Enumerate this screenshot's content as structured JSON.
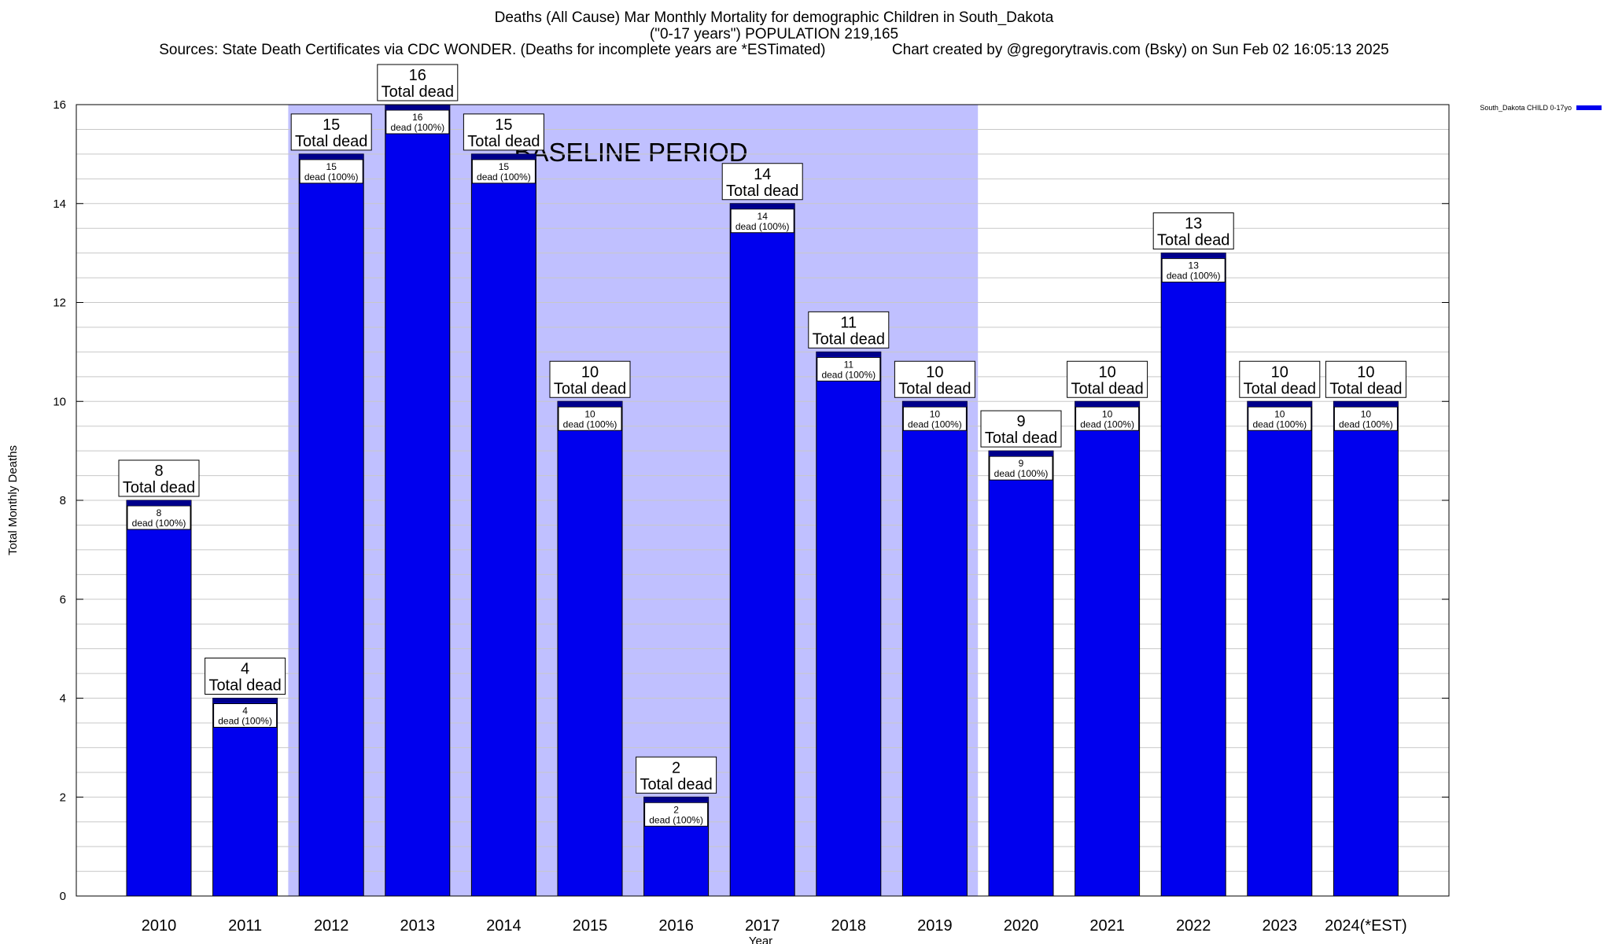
{
  "header": {
    "line1": "Deaths (All Cause) Mar Monthly Mortality for demographic Children in South_Dakota",
    "line2": "(\"0-17 years\") POPULATION 219,165",
    "line3": "Sources: State Death Certificates via CDC WONDER. (Deaths for incomplete years are *ESTimated)                Chart created by @gregorytravis.com (Bsky) on Sun Feb 02 16:05:13 2025"
  },
  "chart_data": {
    "type": "bar",
    "categories": [
      "2010",
      "2011",
      "2012",
      "2013",
      "2014",
      "2015",
      "2016",
      "2017",
      "2018",
      "2019",
      "2020",
      "2021",
      "2022",
      "2023",
      "2024(*EST)"
    ],
    "series": [
      {
        "name": "South_Dakota CHILD 0-17yo",
        "values": [
          8,
          4,
          15,
          16,
          15,
          10,
          2,
          14,
          11,
          10,
          9,
          10,
          13,
          10,
          10
        ]
      }
    ],
    "xlabel": "Year",
    "ylabel": "Total Monthly Deaths",
    "ylim": [
      0,
      16
    ],
    "yticks": [
      0,
      2,
      4,
      6,
      8,
      10,
      12,
      14,
      16
    ],
    "grid": true,
    "legend_position": "top-right",
    "baseline_period": {
      "label": "BASELINE PERIOD",
      "start": "2012",
      "end": "2019"
    },
    "total_label_suffix": "Total dead",
    "inner_label_suffix": "dead (100%)",
    "colors": {
      "bar": "#0000ee",
      "bar_top": "#00008b",
      "baseline_band": "#c0c0ff",
      "grid": "#c8c8c8"
    }
  }
}
